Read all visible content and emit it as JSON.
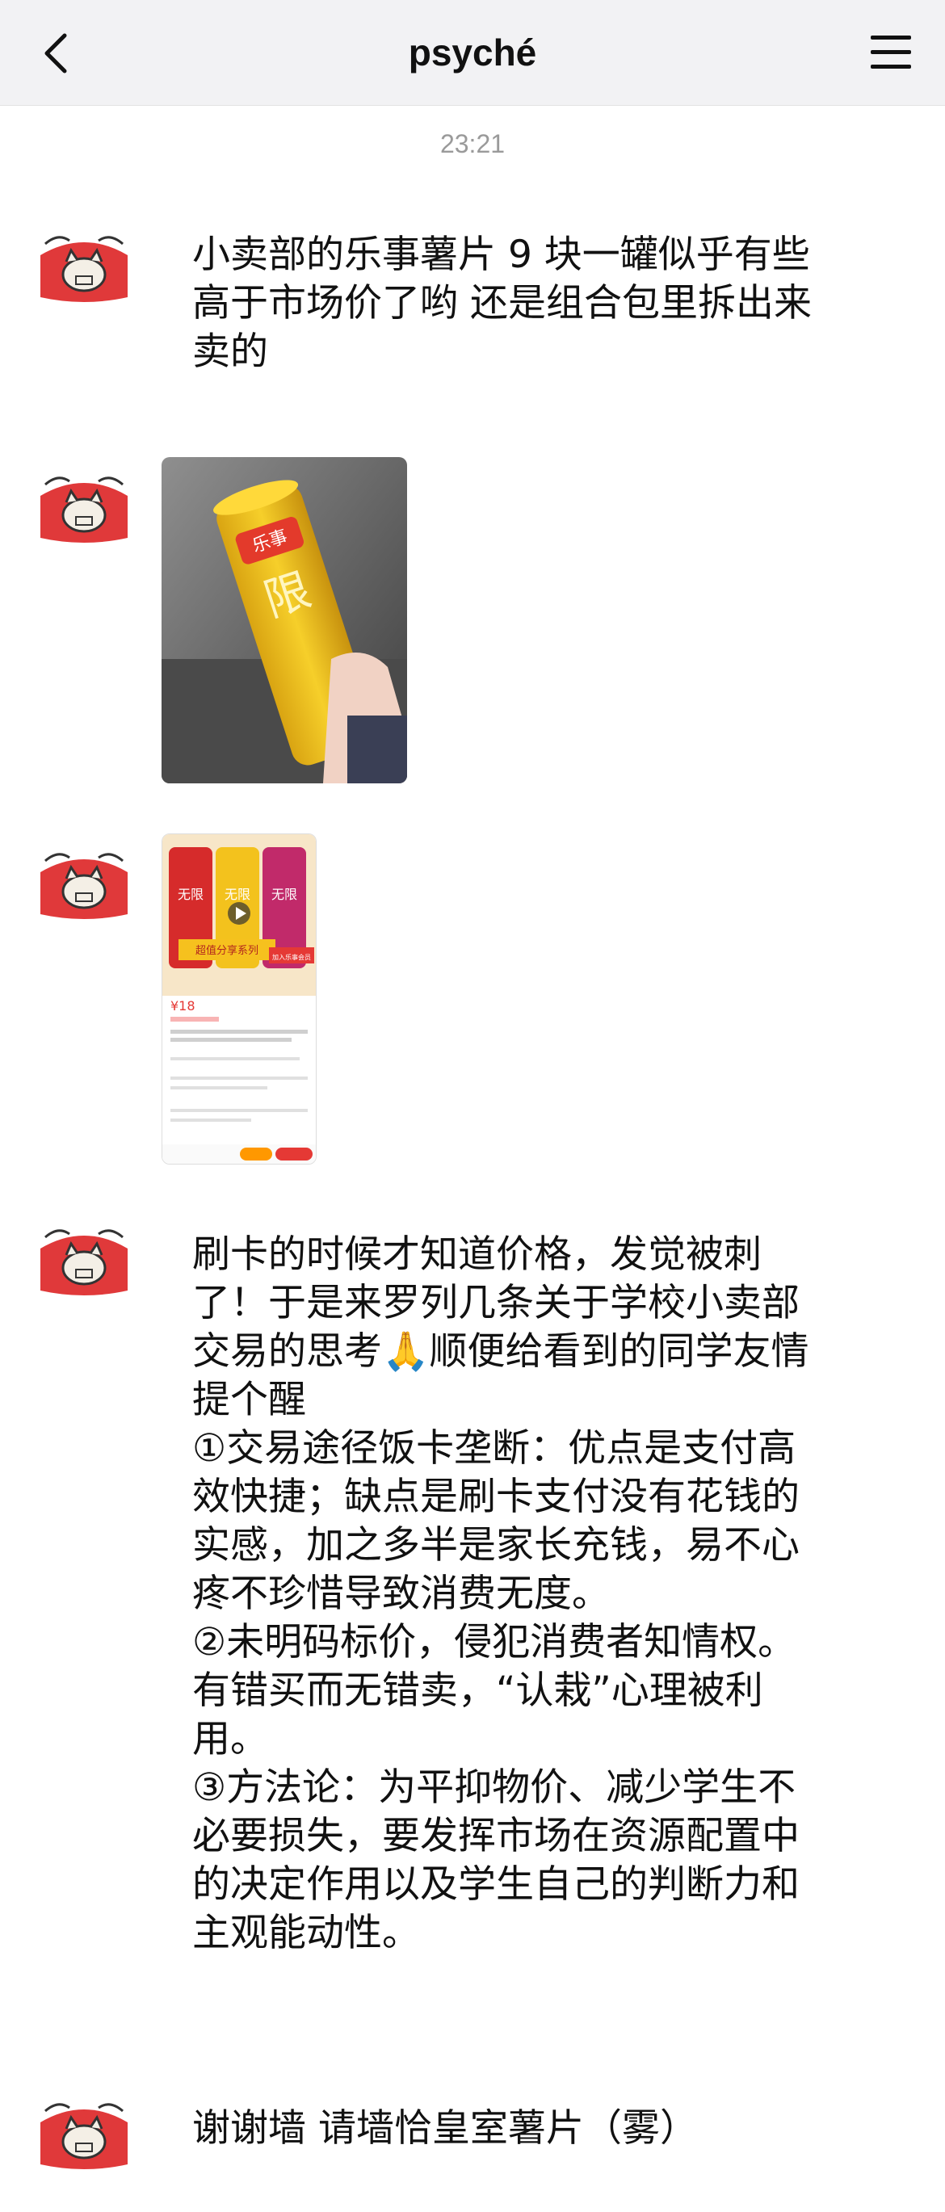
{
  "header": {
    "title": "psyché",
    "back_icon": "chevron-left-icon",
    "menu_icon": "hamburger-menu-icon"
  },
  "timestamp": "23:21",
  "messages": [
    {
      "type": "text",
      "text": "小卖部的乐事薯片 9 块一罐似乎有些高于市场价了哟 还是组合包里拆出来卖的"
    },
    {
      "type": "image",
      "description": "lays-can-photo"
    },
    {
      "type": "image",
      "description": "shopping-app-screenshot",
      "visible_text": [
        "无限",
        "无限",
        "无限",
        "超值分享系列",
        "¥18",
        "加入乐事会员"
      ]
    },
    {
      "type": "text",
      "text": "刷卡的时候才知道价格，发觉被刺了！于是来罗列几条关于学校小卖部交易的思考🙏顺便给看到的同学友情提个醒\n①交易途径饭卡垄断：优点是支付高效快捷；缺点是刷卡支付没有花钱的实感，加之多半是家长充钱，易不心疼不珍惜导致消费无度。\n②未明码标价，侵犯消费者知情权。有错买而无错卖，“认栽”心理被利用。\n③方法论：为平抑物价、减少学生不必要损失，要发挥市场在资源配置中的决定作用以及学生自己的判断力和主观能动性。"
    },
    {
      "type": "text",
      "text": "谢谢墙 请墙恰皇室薯片（雾）"
    }
  ],
  "colors": {
    "header_bg": "#f2f2f4",
    "avatar_red": "#e0393a",
    "can_yellow": "#f2c01e"
  }
}
